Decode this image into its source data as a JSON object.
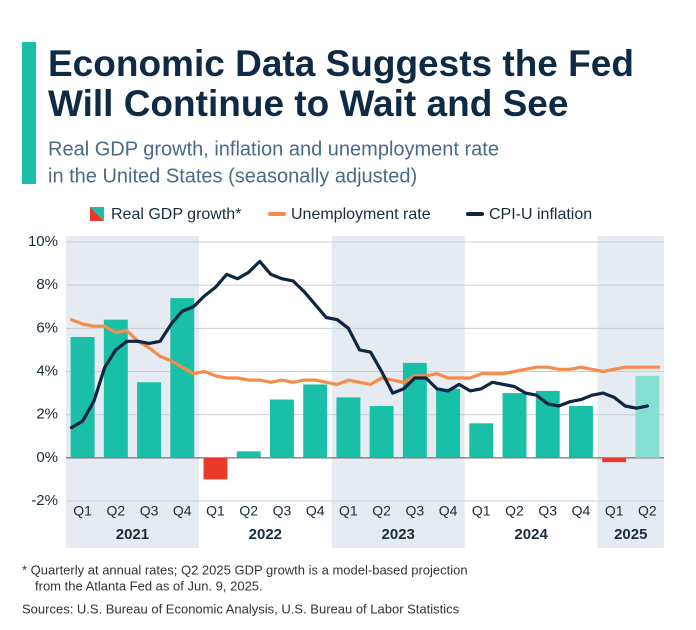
{
  "chart_data": {
    "type": "bar-line",
    "title": [
      "Economic Data Suggests the Fed",
      "Will Continue to Wait and See"
    ],
    "subtitle": [
      "Real GDP growth, inflation and unemployment rate",
      "in the United States (seasonally adjusted)"
    ],
    "groups": [
      {
        "label": "2021",
        "quarters": [
          "Q1",
          "Q2",
          "Q3",
          "Q4"
        ]
      },
      {
        "label": "2022",
        "quarters": [
          "Q1",
          "Q2",
          "Q3",
          "Q4"
        ]
      },
      {
        "label": "2023",
        "quarters": [
          "Q1",
          "Q2",
          "Q3",
          "Q4"
        ]
      },
      {
        "label": "2024",
        "quarters": [
          "Q1",
          "Q2",
          "Q3",
          "Q4"
        ]
      },
      {
        "label": "2025",
        "quarters": [
          "Q1",
          "Q2"
        ]
      }
    ],
    "series": [
      {
        "name": "Real GDP growth*",
        "kind": "bar",
        "values": [
          5.6,
          6.4,
          3.5,
          7.4,
          -1.0,
          0.3,
          2.7,
          3.4,
          2.8,
          2.4,
          4.4,
          3.2,
          1.6,
          3.0,
          3.1,
          2.4,
          -0.2,
          3.8
        ],
        "colors": [
          "#19bfa7",
          "#19bfa7",
          "#19bfa7",
          "#19bfa7",
          "#e8392b",
          "#19bfa7",
          "#19bfa7",
          "#19bfa7",
          "#19bfa7",
          "#19bfa7",
          "#19bfa7",
          "#19bfa7",
          "#19bfa7",
          "#19bfa7",
          "#19bfa7",
          "#19bfa7",
          "#e8392b",
          "#86e0d2"
        ]
      },
      {
        "name": "Unemployment rate",
        "kind": "line",
        "color": "#f58c4b",
        "values": [
          6.4,
          6.2,
          6.1,
          6.1,
          5.8,
          5.9,
          5.4,
          5.1,
          4.7,
          4.5,
          4.2,
          3.9,
          4.0,
          3.8,
          3.7,
          3.7,
          3.6,
          3.6,
          3.5,
          3.6,
          3.5,
          3.6,
          3.6,
          3.5,
          3.4,
          3.6,
          3.5,
          3.4,
          3.7,
          3.6,
          3.5,
          3.8,
          3.8,
          3.9,
          3.7,
          3.7,
          3.7,
          3.9,
          3.9,
          3.9,
          4.0,
          4.1,
          4.2,
          4.2,
          4.1,
          4.1,
          4.2,
          4.1,
          4.0,
          4.1,
          4.2,
          4.2,
          4.2,
          4.2
        ]
      },
      {
        "name": "CPI-U inflation",
        "kind": "line",
        "color": "#0f2541",
        "values": [
          1.4,
          1.7,
          2.6,
          4.2,
          5.0,
          5.4,
          5.4,
          5.3,
          5.4,
          6.2,
          6.8,
          7.0,
          7.5,
          7.9,
          8.5,
          8.3,
          8.6,
          9.1,
          8.5,
          8.3,
          8.2,
          7.7,
          7.1,
          6.5,
          6.4,
          6.0,
          5.0,
          4.9,
          4.0,
          3.0,
          3.2,
          3.7,
          3.7,
          3.2,
          3.1,
          3.4,
          3.1,
          3.2,
          3.5,
          3.4,
          3.3,
          3.0,
          2.9,
          2.5,
          2.4,
          2.6,
          2.7,
          2.9,
          3.0,
          2.8,
          2.4,
          2.3,
          2.4,
          null
        ]
      }
    ],
    "ylim": [
      -2,
      10
    ],
    "yticks": [
      {
        "value": -2,
        "label": "-2%"
      },
      {
        "value": 0,
        "label": "0%"
      },
      {
        "value": 2,
        "label": "2%"
      },
      {
        "value": 4,
        "label": "4%"
      },
      {
        "value": 6,
        "label": "6%"
      },
      {
        "value": 8,
        "label": "8%"
      },
      {
        "value": 10,
        "label": "10%"
      }
    ],
    "grid": true,
    "notes": [
      "* Quarterly at annual rates; Q2 2025 GDP growth is a model-based projection",
      "from the Atlanta Fed as of Jun. 9, 2025."
    ],
    "source": "Sources: U.S. Bureau of Economic Analysis, U.S. Bureau of Labor Statistics"
  }
}
